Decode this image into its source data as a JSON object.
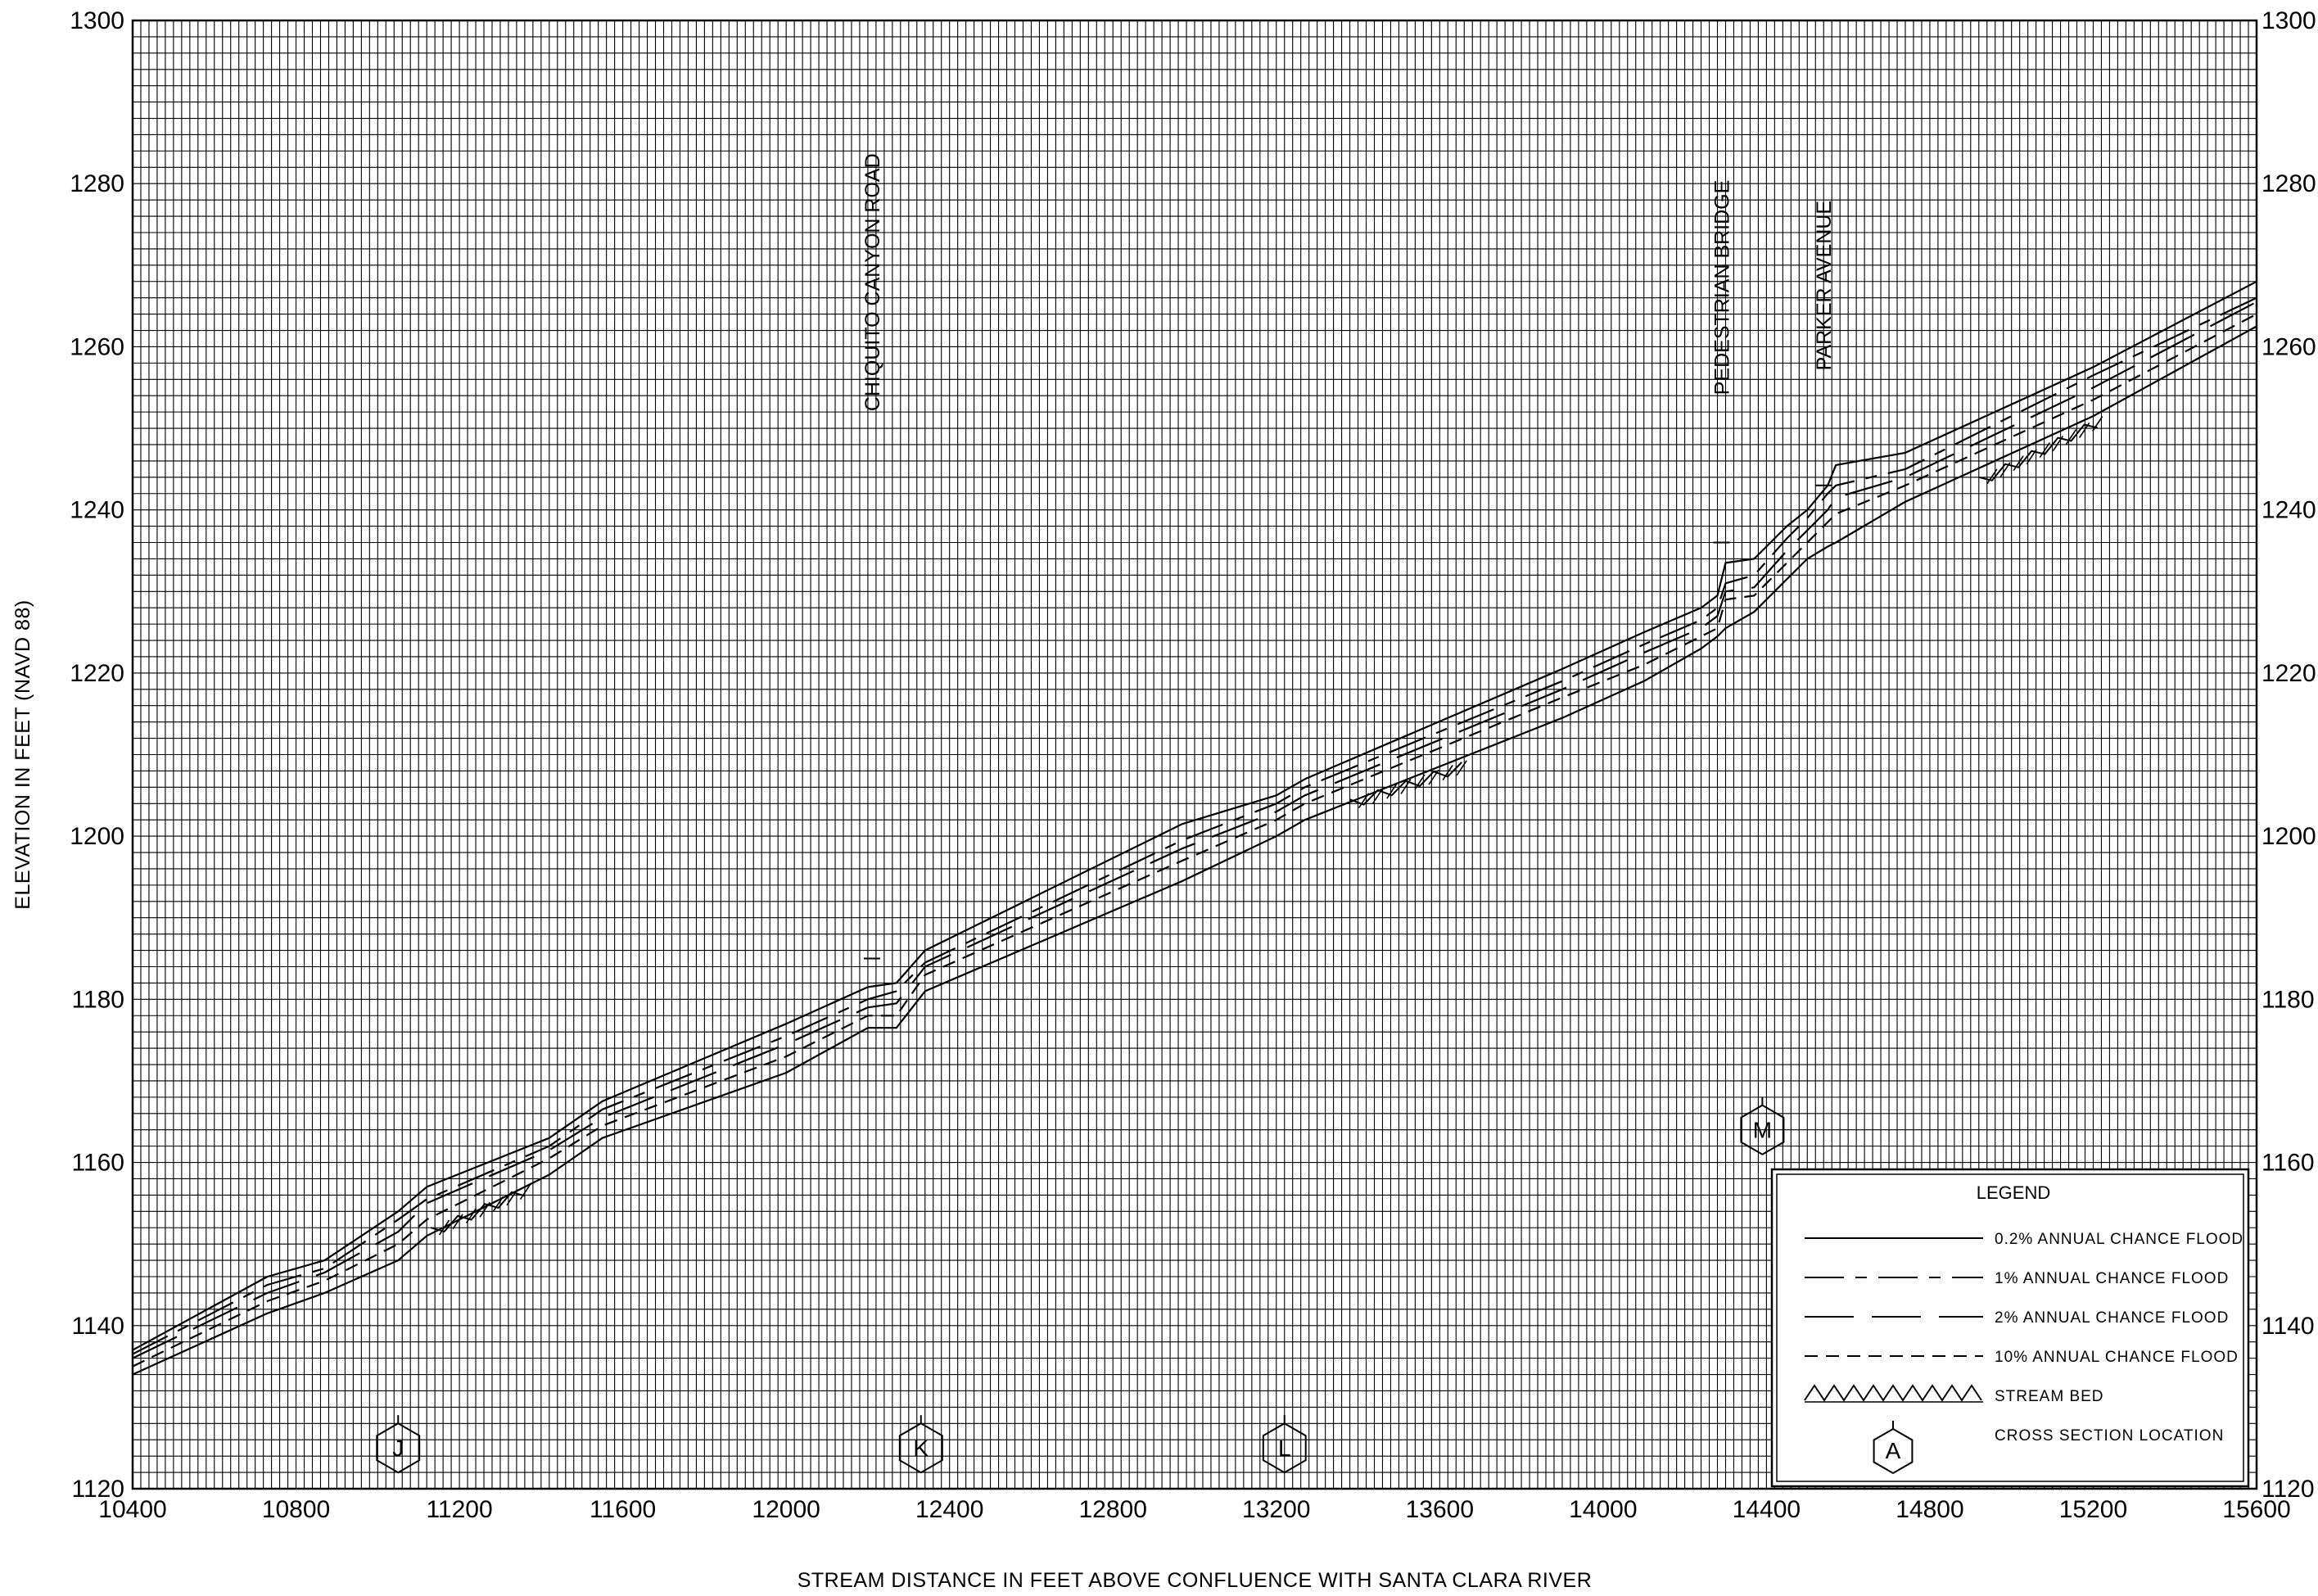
{
  "chart_data": {
    "type": "line",
    "xlabel": "STREAM DISTANCE IN FEET ABOVE CONFLUENCE WITH SANTA CLARA RIVER",
    "ylabel": "ELEVATION  IN  FEET  (NAVD  88)",
    "xlim": [
      10400,
      15600
    ],
    "ylim": [
      1120,
      1300
    ],
    "x_ticks": [
      10400,
      10800,
      11200,
      11600,
      12000,
      12400,
      12800,
      13200,
      13600,
      14000,
      14400,
      14800,
      15200,
      15600
    ],
    "y_ticks": [
      1120,
      1140,
      1160,
      1180,
      1200,
      1220,
      1240,
      1260,
      1280,
      1300
    ],
    "grid": true,
    "legend_position": "bottom-right",
    "legend": {
      "title": "LEGEND",
      "entries": [
        {
          "key": "p02",
          "label": "0.2%  ANNUAL  CHANCE  FLOOD",
          "style": "solid"
        },
        {
          "key": "p1",
          "label": "1%  ANNUAL  CHANCE  FLOOD",
          "style": "long-dash-short-dash"
        },
        {
          "key": "p2",
          "label": "2%  ANNUAL  CHANCE  FLOOD",
          "style": "long-dash"
        },
        {
          "key": "p10",
          "label": "10%  ANNUAL  CHANCE  FLOOD",
          "style": "dashed"
        },
        {
          "key": "bed",
          "label": "STREAM  BED",
          "style": "hatched"
        },
        {
          "key": "xs",
          "label": "CROSS  SECTION  LOCATION",
          "symbol_letter": "A"
        }
      ]
    },
    "series": [
      {
        "key": "p02",
        "x": [
          10400,
          10730,
          10870,
          11050,
          11120,
          11420,
          11550,
          12000,
          12200,
          12270,
          12340,
          12970,
          13200,
          13270,
          13900,
          14100,
          14240,
          14280,
          14300,
          14370,
          14450,
          14500,
          14550,
          14570,
          14740,
          15200,
          15600
        ],
        "y": [
          1137,
          1146,
          1148,
          1154,
          1157,
          1163,
          1167.5,
          1177,
          1181.5,
          1182,
          1186,
          1201.5,
          1205,
          1207,
          1220.5,
          1225,
          1228,
          1229.5,
          1233.5,
          1234,
          1238,
          1240,
          1243,
          1245.5,
          1247,
          1257.5,
          1268
        ]
      },
      {
        "key": "p1",
        "x": [
          10400,
          10730,
          10870,
          11050,
          11120,
          11420,
          11550,
          12000,
          12200,
          12270,
          12340,
          12970,
          13200,
          13270,
          13900,
          14100,
          14240,
          14280,
          14300,
          14370,
          14450,
          14500,
          14550,
          14570,
          14740,
          15200,
          15600
        ],
        "y": [
          1136.5,
          1145,
          1147,
          1153,
          1155.5,
          1162,
          1166.5,
          1175.5,
          1180,
          1181,
          1184.5,
          1199.5,
          1204,
          1206,
          1219,
          1223.5,
          1226.5,
          1228,
          1231,
          1232,
          1236.5,
          1239,
          1242,
          1243,
          1245,
          1256.5,
          1266
        ]
      },
      {
        "key": "p2",
        "x": [
          10400,
          10730,
          10870,
          11050,
          11120,
          11420,
          11550,
          12000,
          12200,
          12270,
          12340,
          12970,
          13200,
          13270,
          13900,
          14100,
          14240,
          14280,
          14300,
          14370,
          14450,
          14500,
          14550,
          14570,
          14740,
          15200,
          15600
        ],
        "y": [
          1136,
          1144,
          1146.5,
          1151.5,
          1155,
          1161.5,
          1165.5,
          1174.5,
          1179,
          1179.5,
          1184,
          1198.5,
          1203,
          1205,
          1218,
          1222.5,
          1225.5,
          1227,
          1230,
          1230.5,
          1235,
          1237.5,
          1240,
          1241.5,
          1244,
          1255,
          1265.5
        ]
      },
      {
        "key": "p10",
        "x": [
          10400,
          10730,
          10870,
          11050,
          11120,
          11420,
          11550,
          12000,
          12200,
          12270,
          12340,
          12970,
          13200,
          13270,
          13900,
          14100,
          14240,
          14280,
          14300,
          14370,
          14450,
          14500,
          14550,
          14570,
          14740,
          15200,
          15600
        ],
        "y": [
          1135,
          1143,
          1145.5,
          1150,
          1153,
          1160.5,
          1164.5,
          1173,
          1178,
          1178,
          1183,
          1197,
          1202,
          1204,
          1217,
          1221,
          1224.5,
          1225.5,
          1229,
          1229.5,
          1233.5,
          1236,
          1238.5,
          1239.5,
          1243,
          1253.5,
          1264
        ]
      },
      {
        "key": "bed",
        "x": [
          10400,
          10730,
          10870,
          11050,
          11120,
          11420,
          11550,
          12000,
          12200,
          12270,
          12340,
          12970,
          13200,
          13270,
          13900,
          14100,
          14240,
          14280,
          14300,
          14370,
          14450,
          14500,
          14550,
          14570,
          14740,
          15200,
          15600
        ],
        "y": [
          1134,
          1141.5,
          1144,
          1148,
          1151,
          1158.5,
          1163,
          1171,
          1176.5,
          1176.5,
          1181,
          1194.5,
          1200,
          1202,
          1214.5,
          1219,
          1223,
          1224.5,
          1225.5,
          1227.5,
          1231.5,
          1234,
          1235.5,
          1236,
          1241,
          1251.5,
          1262.5
        ]
      }
    ],
    "stream_bed_hatch_segments": [
      {
        "x": [
          11130,
          11380
        ],
        "y": [
          1152,
          1157.5
        ]
      },
      {
        "x": [
          13380,
          13680
        ],
        "y": [
          1204.5,
          1209.5
        ]
      },
      {
        "x": [
          14920,
          15220
        ],
        "y": [
          1244,
          1251.5
        ]
      }
    ],
    "structures": [
      {
        "label": "CHIQUITO CANYON ROAD",
        "x": 12210,
        "y_label_bottom": 1253,
        "deck_top": 1185
      },
      {
        "label": "PEDESTRIAN BRIDGE",
        "x": 14290,
        "y_label_bottom": 1255,
        "deck_top": 1236
      },
      {
        "label": "PARKER AVENUE",
        "x": 14540,
        "y_label_bottom": 1258,
        "deck_top": 1243
      }
    ],
    "cross_sections": [
      {
        "letter": "J",
        "x": 11050,
        "y": 1125
      },
      {
        "letter": "K",
        "x": 12330,
        "y": 1125
      },
      {
        "letter": "L",
        "x": 13220,
        "y": 1125
      },
      {
        "letter": "M",
        "x": 14390,
        "y": 1164
      }
    ]
  }
}
